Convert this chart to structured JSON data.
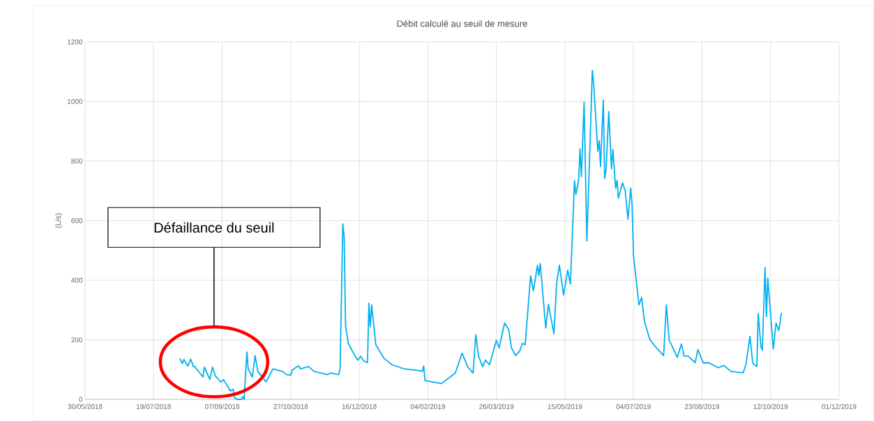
{
  "chart_data": {
    "type": "line",
    "title": "Débit calculé au seuil de mesure",
    "ylabel": "(L/s)",
    "annotations": [
      "Défaillance du seuil"
    ],
    "color": "#00b0f0",
    "grid": true,
    "xlim": [
      "2018-05-30",
      "2019-12-01"
    ],
    "ylim": [
      0,
      1200
    ],
    "xticks": [
      {
        "value": "2018-05-30",
        "label": "30/05/2018"
      },
      {
        "value": "2018-07-19",
        "label": "19/07/2018"
      },
      {
        "value": "2018-09-07",
        "label": "07/09/2018"
      },
      {
        "value": "2018-10-27",
        "label": "27/10/2018"
      },
      {
        "value": "2018-12-16",
        "label": "16/12/2018"
      },
      {
        "value": "2019-02-04",
        "label": "04/02/2019"
      },
      {
        "value": "2019-03-26",
        "label": "26/03/2019"
      },
      {
        "value": "2019-05-15",
        "label": "15/05/2019"
      },
      {
        "value": "2019-07-04",
        "label": "04/07/2019"
      },
      {
        "value": "2019-08-23",
        "label": "23/08/2019"
      },
      {
        "value": "2019-10-12",
        "label": "12/10/2019"
      },
      {
        "value": "2019-12-01",
        "label": "01/12/2019"
      }
    ],
    "yticks": [
      0,
      200,
      400,
      600,
      800,
      1000,
      1200
    ],
    "x": [
      "2018-08-07",
      "2018-08-09",
      "2018-08-10",
      "2018-08-13",
      "2018-08-15",
      "2018-08-17",
      "2018-08-18",
      "2018-08-24",
      "2018-08-25",
      "2018-08-29",
      "2018-08-31",
      "2018-09-02",
      "2018-09-06",
      "2018-09-08",
      "2018-09-13",
      "2018-09-15",
      "2018-09-16",
      "2018-09-18",
      "2018-09-21",
      "2018-09-22",
      "2018-09-23",
      "2018-09-25",
      "2018-09-26",
      "2018-09-29",
      "2018-10-01",
      "2018-10-03",
      "2018-10-09",
      "2018-10-14",
      "2018-10-21",
      "2018-10-24",
      "2018-10-27",
      "2018-10-28",
      "2018-10-31",
      "2018-11-02",
      "2018-11-03",
      "2018-11-09",
      "2018-11-13",
      "2018-11-23",
      "2018-11-25",
      "2018-12-01",
      "2018-12-02",
      "2018-12-04",
      "2018-12-05",
      "2018-12-06",
      "2018-12-08",
      "2018-12-13",
      "2018-12-15",
      "2018-12-17",
      "2018-12-19",
      "2018-12-22",
      "2018-12-23",
      "2018-12-24",
      "2018-12-25",
      "2018-12-28",
      "2019-01-03",
      "2019-01-09",
      "2019-01-18",
      "2019-01-28",
      "2019-01-31",
      "2019-02-01",
      "2019-02-02",
      "2019-02-07",
      "2019-02-14",
      "2019-02-19",
      "2019-02-24",
      "2019-03-01",
      "2019-03-05",
      "2019-03-09",
      "2019-03-11",
      "2019-03-13",
      "2019-03-16",
      "2019-03-18",
      "2019-03-21",
      "2019-03-26",
      "2019-03-28",
      "2019-04-01",
      "2019-04-04",
      "2019-04-06",
      "2019-04-09",
      "2019-04-12",
      "2019-04-14",
      "2019-04-16",
      "2019-04-20",
      "2019-04-22",
      "2019-04-25",
      "2019-04-26",
      "2019-04-27",
      "2019-05-01",
      "2019-05-03",
      "2019-05-07",
      "2019-05-09",
      "2019-05-11",
      "2019-05-14",
      "2019-05-17",
      "2019-05-19",
      "2019-05-22",
      "2019-05-23",
      "2019-05-25",
      "2019-05-26",
      "2019-05-27",
      "2019-05-29",
      "2019-05-31",
      "2019-06-02",
      "2019-06-04",
      "2019-06-05",
      "2019-06-08",
      "2019-06-09",
      "2019-06-10",
      "2019-06-12",
      "2019-06-13",
      "2019-06-14",
      "2019-06-16",
      "2019-06-18",
      "2019-06-19",
      "2019-06-21",
      "2019-06-22",
      "2019-06-23",
      "2019-06-26",
      "2019-06-28",
      "2019-06-30",
      "2019-07-02",
      "2019-07-03",
      "2019-07-04",
      "2019-07-07",
      "2019-07-08",
      "2019-07-10",
      "2019-07-12",
      "2019-07-14",
      "2019-07-16",
      "2019-07-20",
      "2019-07-26",
      "2019-07-28",
      "2019-07-30",
      "2019-08-05",
      "2019-08-08",
      "2019-08-10",
      "2019-08-13",
      "2019-08-18",
      "2019-08-20",
      "2019-08-24",
      "2019-08-28",
      "2019-09-04",
      "2019-09-08",
      "2019-09-13",
      "2019-09-22",
      "2019-09-24",
      "2019-09-27",
      "2019-09-29",
      "2019-10-02",
      "2019-10-03",
      "2019-10-05",
      "2019-10-06",
      "2019-10-08",
      "2019-10-09",
      "2019-10-10",
      "2019-10-14",
      "2019-10-16",
      "2019-10-18",
      "2019-10-20"
    ],
    "values": [
      137,
      120,
      134,
      112,
      135,
      110,
      110,
      75,
      108,
      67,
      108,
      79,
      58,
      66,
      28,
      34,
      5,
      0,
      0,
      9,
      0,
      159,
      102,
      75,
      147,
      94,
      59,
      102,
      94,
      83,
      81,
      98,
      108,
      112,
      102,
      110,
      94,
      83,
      89,
      83,
      102,
      589,
      544,
      247,
      188,
      145,
      131,
      145,
      130,
      123,
      323,
      243,
      317,
      184,
      138,
      116,
      102,
      97,
      94,
      112,
      63,
      59,
      53,
      71,
      88,
      155,
      110,
      88,
      217,
      145,
      110,
      132,
      116,
      198,
      173,
      256,
      235,
      173,
      147,
      162,
      188,
      183,
      415,
      364,
      450,
      415,
      456,
      239,
      319,
      220,
      391,
      450,
      350,
      434,
      387,
      735,
      688,
      735,
      841,
      748,
      998,
      532,
      809,
      1104,
      1059,
      833,
      868,
      782,
      1005,
      741,
      772,
      966,
      774,
      839,
      709,
      735,
      675,
      727,
      700,
      605,
      709,
      653,
      485,
      358,
      317,
      342,
      262,
      231,
      200,
      177,
      147,
      317,
      200,
      141,
      186,
      145,
      145,
      123,
      167,
      122,
      123,
      106,
      114,
      94,
      89,
      116,
      212,
      122,
      110,
      288,
      177,
      165,
      442,
      278,
      407,
      169,
      256,
      231,
      291
    ]
  }
}
